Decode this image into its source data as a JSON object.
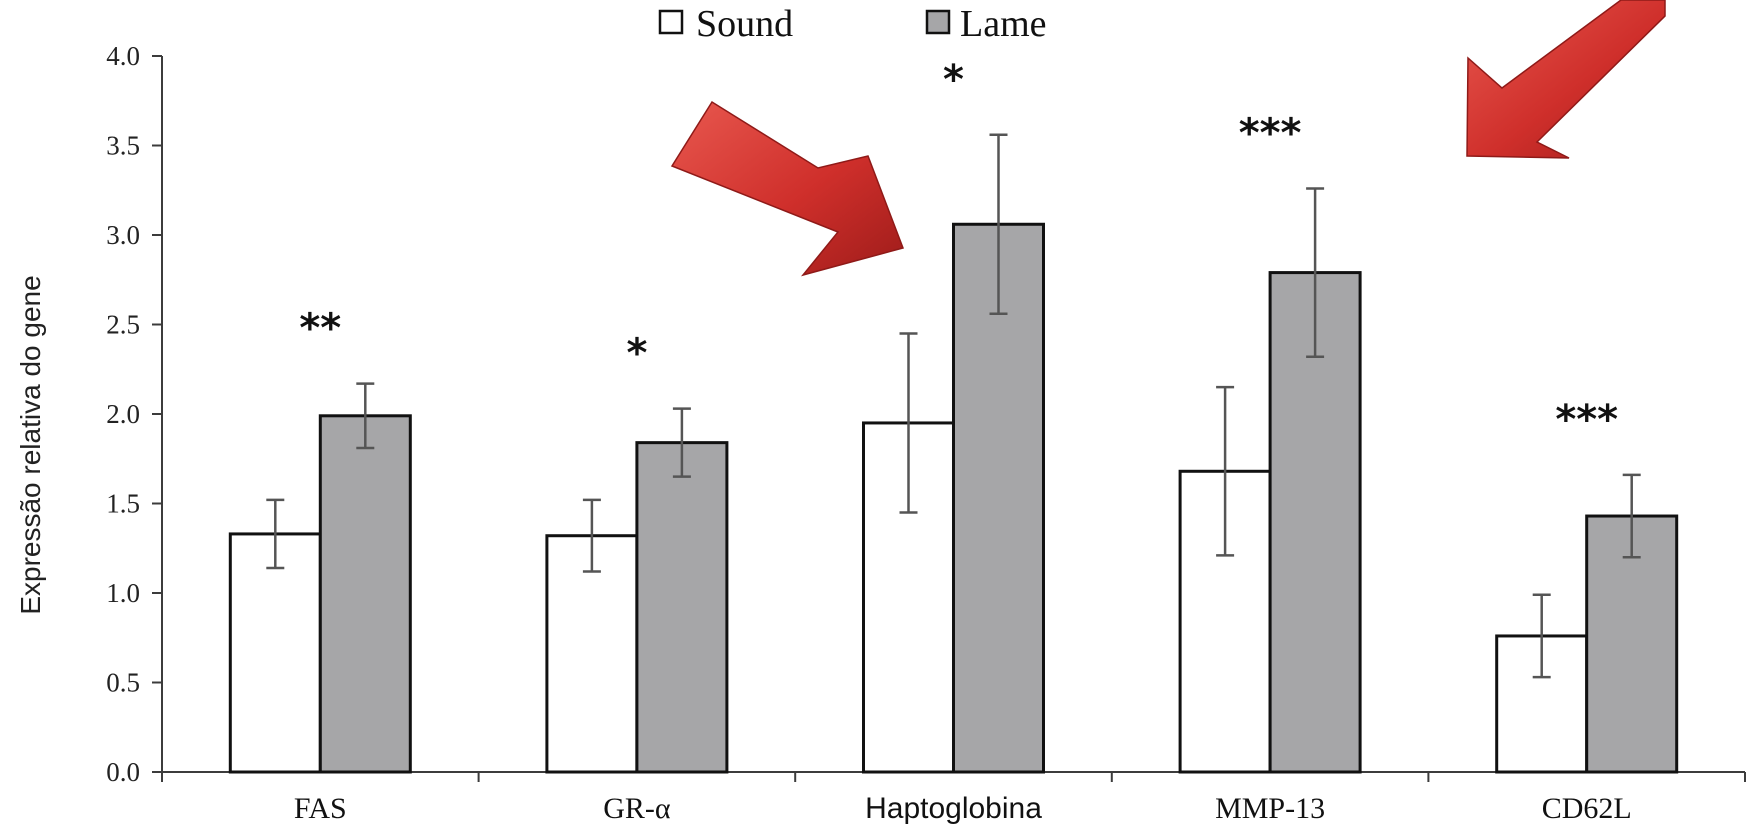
{
  "chart_data": {
    "type": "bar",
    "categories": [
      "FAS",
      "GR-α",
      "Haptoglobina",
      "MMP-13",
      "CD62L"
    ],
    "series": [
      {
        "name": "Sound",
        "values": [
          1.33,
          1.32,
          1.95,
          1.68,
          0.76
        ],
        "errors": [
          0.19,
          0.2,
          0.5,
          0.47,
          0.23
        ],
        "color": "#ffffff"
      },
      {
        "name": "Lame",
        "values": [
          1.99,
          1.84,
          3.06,
          2.79,
          1.43
        ],
        "errors": [
          0.18,
          0.19,
          0.5,
          0.47,
          0.23
        ],
        "color": "#a6a6a8"
      }
    ],
    "significance": [
      "**",
      "*",
      "*",
      "***",
      "***"
    ],
    "ylabel": "Expressão relativa do gene",
    "xlabel": "",
    "ylim": [
      0,
      4
    ],
    "yticks": [
      "0.0",
      "0.5",
      "1.0",
      "1.5",
      "2.0",
      "2.5",
      "3.0",
      "3.5",
      "4.0"
    ],
    "legend_position": "top-center",
    "annotation_arrow_color": "#d8302d"
  }
}
